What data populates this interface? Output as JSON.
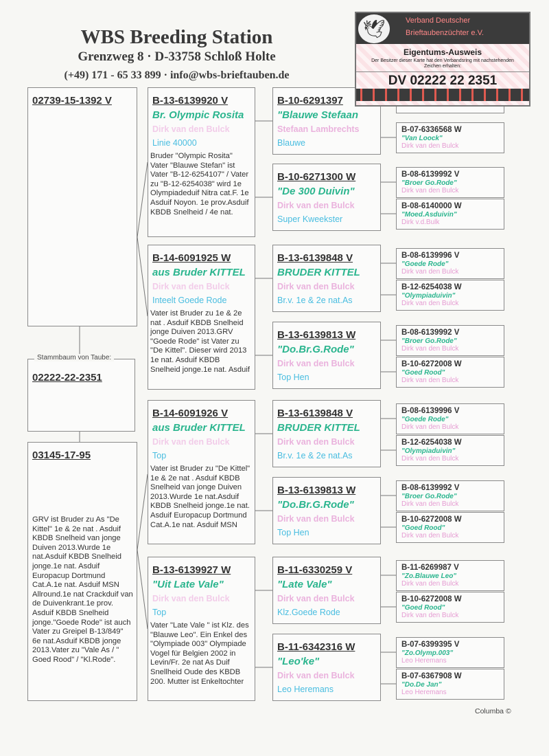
{
  "header": {
    "title": "WBS Breeding Station",
    "address": "Grenzweg 8  ·  D-33758 Schloß Holte",
    "contact": "(+49) 171 - 65 33 899  ·  info@wbs-brieftauben.de"
  },
  "card": {
    "org_line1": "Verband Deutscher",
    "org_line2": "Brieftaubenzüchter e.V.",
    "title": "Eigentums-Ausweis",
    "description": "Der Besitzer dieser Karte hat den Verbandsring mit nachstehenden Zeichen erhalten:",
    "ring": "DV 02222 22 2351",
    "logo_icon": "dove-icon"
  },
  "subject": {
    "label": "Stammbaum von Taube:",
    "ring": "02222-22-2351"
  },
  "father": {
    "ring": "02739-15-1392 V",
    "note": ""
  },
  "mother": {
    "ring": "03145-17-95",
    "note": "GRV ist Bruder zu As \"De Kittel\" 1e & 2e nat . Asduif KBDB Snelheid van jonge Duiven 2013.Wurde 1e nat.Asduif KBDB Snelheid jonge.1e nat. Asduif Europacup  Dortmund Cat.A.1e nat. Asduif MSN Allround.1e nat Crackduif van de Duivenkrant.1e prov. Asduif KBDB Snelheid jonge.\"Goede Rode\" ist auch Vater zu Greipel B-13/849\" 6e nat.Asduif KBDB jonge 2013.Vater zu \"Vale As / \" Goed Rood\" / \"Kl.Rode\"."
  },
  "gen2": [
    {
      "ring": "B-13-6139920 V",
      "name": "Br. Olympic Rosita",
      "owner": "Dirk van den Bulck",
      "line": "Linie 40000",
      "note": "Bruder \"Olympic Rosita\" Vater \"Blauwe Stefan\" ist Vater \"B-12-6254107\" / Vater zu \"B-12-6254038\" wird 1e Olympiadeduif Nitra cat.F. 1e Asduif Noyon. 1e prov.Asduif KBDB Snelheid / 4e  nat."
    },
    {
      "ring": "B-14-6091925 W",
      "name": "aus Bruder KITTEL",
      "owner": "Dirk van den Bulck",
      "line": "Inteelt Goede Rode",
      "note": "Vater ist Bruder zu 1e & 2e nat . Asduif KBDB Snelheid jonge Duiven 2013.GRV \"Goede Rode\" ist Vater zu \"De  Kittel\". Dieser wird 2013 1e nat. Asduif KBDB Snelheid jonge.1e nat. Asduif"
    },
    {
      "ring": "B-14-6091926 V",
      "name": "aus Bruder KITTEL",
      "owner": "Dirk van den Bulck",
      "line": "Top",
      "note": "Vater ist Bruder zu \"De Kittel\" 1e & 2e nat . Asduif KBDB Snelheid van jonge Duiven 2013.Wurde 1e nat.Asduif KBDB Snelheid jonge.1e nat. Asduif Europacup  Dortmund Cat.A.1e nat. Asduif MSN"
    },
    {
      "ring": "B-13-6139927 W",
      "name": "\"Uit Late Vale\"",
      "owner": "Dirk van den Bulck",
      "line": "Top",
      "note": "Vater \"Late Vale \" ist Klz. des \"Blauwe Leo\". Ein Enkel des \"Olympiade 003\" Olympiade Vogel für Belgien 2002 in Levin/Fr. 2e nat As Duif Snellheid Oude des KBDB 200. Mutter ist Enkeltochter"
    }
  ],
  "gen3": [
    {
      "ring": "B-10-6291397",
      "name": "\"Blauwe Stefaan",
      "owner": "Stefaan Lambrechts",
      "line": "Blauwe"
    },
    {
      "ring": "B-10-6271300 W",
      "name": "\"De 300 Duivin\"",
      "owner": "Dirk van den Bulck",
      "line": "Super Kweekster"
    },
    {
      "ring": "B-13-6139848 V",
      "name": "BRUDER KITTEL",
      "owner": "Dirk van den Bulck",
      "line": "Br.v. 1e & 2e nat.As"
    },
    {
      "ring": "B-13-6139813 W",
      "name": "\"Do.Br.G.Rode\"",
      "owner": "Dirk van den Bulck",
      "line": "Top Hen"
    },
    {
      "ring": "B-13-6139848 V",
      "name": "BRUDER KITTEL",
      "owner": "Dirk van den Bulck",
      "line": "Br.v. 1e & 2e nat.As"
    },
    {
      "ring": "B-13-6139813 W",
      "name": "\"Do.Br.G.Rode\"",
      "owner": "Dirk van den Bulck",
      "line": "Top Hen"
    },
    {
      "ring": "B-11-6330259 V",
      "name": "\"Late Vale\"",
      "owner": "Dirk van den Bulck",
      "line": "Klz.Goede Rode"
    },
    {
      "ring": "B-11-6342316 W",
      "name": "\"Leo'ke\"",
      "owner": "Dirk van den Bulck",
      "line": "Leo Heremans"
    }
  ],
  "gen4": [
    {
      "ring": "",
      "name": "",
      "owner": ""
    },
    {
      "ring": "B-07-6336568 W",
      "name": "\"Van Loock\"",
      "owner": "Dirk van den Bulck"
    },
    {
      "ring": "B-08-6139992 V",
      "name": "\"Broer Go.Rode\"",
      "owner": "Dirk van den Bulck"
    },
    {
      "ring": "B-08-6140000 W",
      "name": "\"Moed.Asduivin\"",
      "owner": "Dirk v.d.Bulk"
    },
    {
      "ring": "B-08-6139996 V",
      "name": "\"Goede Rode\"",
      "owner": "Dirk van den Bulck"
    },
    {
      "ring": "B-12-6254038 W",
      "name": "\"Olympiaduivin\"",
      "owner": "Dirk van den Bulck"
    },
    {
      "ring": "B-08-6139992 V",
      "name": "\"Broer Go.Rode\"",
      "owner": "Dirk van den Bulck"
    },
    {
      "ring": "B-10-6272008 W",
      "name": "\"Goed Rood\"",
      "owner": "Dirk van den Bulck"
    },
    {
      "ring": "B-08-6139996 V",
      "name": "\"Goede Rode\"",
      "owner": "Dirk van den Bulck"
    },
    {
      "ring": "B-12-6254038 W",
      "name": "\"Olympiaduivin\"",
      "owner": "Dirk van den Bulck"
    },
    {
      "ring": "B-08-6139992 V",
      "name": "\"Broer Go.Rode\"",
      "owner": "Dirk van den Bulck"
    },
    {
      "ring": "B-10-6272008 W",
      "name": "\"Goed Rood\"",
      "owner": "Dirk van den Bulck"
    },
    {
      "ring": "B-11-6269987 V",
      "name": "\"Zo.Blauwe Leo\"",
      "owner": "Dirk van den Bulck"
    },
    {
      "ring": "B-10-6272008 W",
      "name": "\"Goed Rood\"",
      "owner": "Dirk van den Bulck"
    },
    {
      "ring": "B-07-6399395 V",
      "name": "\"Zo.Olymp.003\"",
      "owner": "Leo Heremans"
    },
    {
      "ring": "B-07-6367908 W",
      "name": "\"Do.De Jan\"",
      "owner": "Leo Heremans"
    }
  ],
  "footer": {
    "credit": "Columba ©"
  },
  "colors": {
    "name": "#2bb58e",
    "owner": "#eab2dd",
    "line": "#49bde0"
  }
}
